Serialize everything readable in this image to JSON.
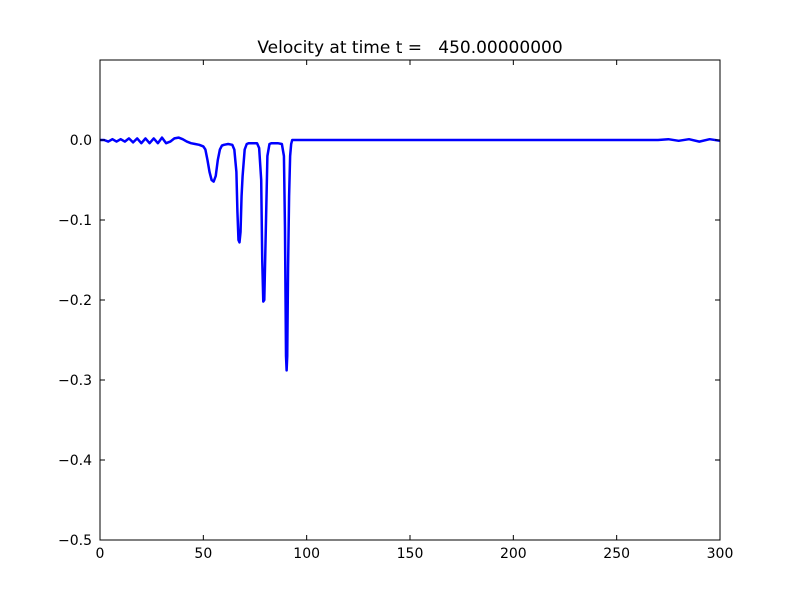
{
  "chart_data": {
    "type": "line",
    "title": "Velocity at time t =   450.00000000",
    "xlabel": "",
    "ylabel": "",
    "xlim": [
      0,
      300
    ],
    "ylim": [
      -0.5,
      0.1
    ],
    "xticks": [
      0,
      50,
      100,
      150,
      200,
      250,
      300
    ],
    "xtick_labels": [
      "0",
      "50",
      "100",
      "150",
      "200",
      "250",
      "300"
    ],
    "yticks": [
      0.0,
      -0.1,
      -0.2,
      -0.3,
      -0.4,
      -0.5
    ],
    "ytick_labels": [
      "0.0",
      "−0.1",
      "−0.2",
      "−0.3",
      "−0.4",
      "−0.5"
    ],
    "grid": false,
    "legend": "none",
    "series": [
      {
        "color": "#0000ff",
        "x": [
          0,
          2,
          4,
          6,
          8,
          10,
          12,
          14,
          16,
          18,
          20,
          22,
          24,
          26,
          28,
          30,
          32,
          34,
          36,
          38,
          40,
          42,
          44,
          46,
          48,
          50,
          51,
          52,
          53,
          54,
          55,
          56,
          57,
          58,
          59,
          60,
          62,
          64,
          65,
          66,
          66.5,
          67,
          67.5,
          68,
          68.5,
          69,
          70,
          71,
          72,
          74,
          76,
          77,
          78,
          78.5,
          79,
          79.5,
          80,
          80.5,
          81,
          82,
          83,
          84,
          86,
          88,
          89,
          89.5,
          90,
          90.3,
          90.6,
          91,
          91.5,
          92,
          92.5,
          93,
          94,
          100,
          150,
          200,
          250,
          270,
          275,
          280,
          285,
          290,
          295,
          300
        ],
        "y": [
          0.0,
          0.0,
          -0.002,
          0.001,
          -0.002,
          0.001,
          -0.002,
          0.002,
          -0.003,
          0.002,
          -0.004,
          0.002,
          -0.004,
          0.002,
          -0.004,
          0.003,
          -0.004,
          -0.002,
          0.002,
          0.003,
          0.001,
          -0.002,
          -0.004,
          -0.005,
          -0.006,
          -0.008,
          -0.012,
          -0.025,
          -0.04,
          -0.05,
          -0.052,
          -0.045,
          -0.025,
          -0.012,
          -0.007,
          -0.006,
          -0.005,
          -0.006,
          -0.012,
          -0.04,
          -0.09,
          -0.125,
          -0.128,
          -0.115,
          -0.07,
          -0.045,
          -0.012,
          -0.005,
          -0.004,
          -0.004,
          -0.004,
          -0.01,
          -0.05,
          -0.15,
          -0.202,
          -0.2,
          -0.14,
          -0.08,
          -0.02,
          -0.005,
          -0.004,
          -0.004,
          -0.004,
          -0.005,
          -0.02,
          -0.11,
          -0.27,
          -0.288,
          -0.27,
          -0.16,
          -0.07,
          -0.02,
          -0.005,
          0.0,
          0.0,
          0.0,
          0.0,
          0.0,
          0.0,
          0.0,
          0.001,
          -0.001,
          0.001,
          -0.002,
          0.001,
          -0.001
        ]
      }
    ]
  }
}
